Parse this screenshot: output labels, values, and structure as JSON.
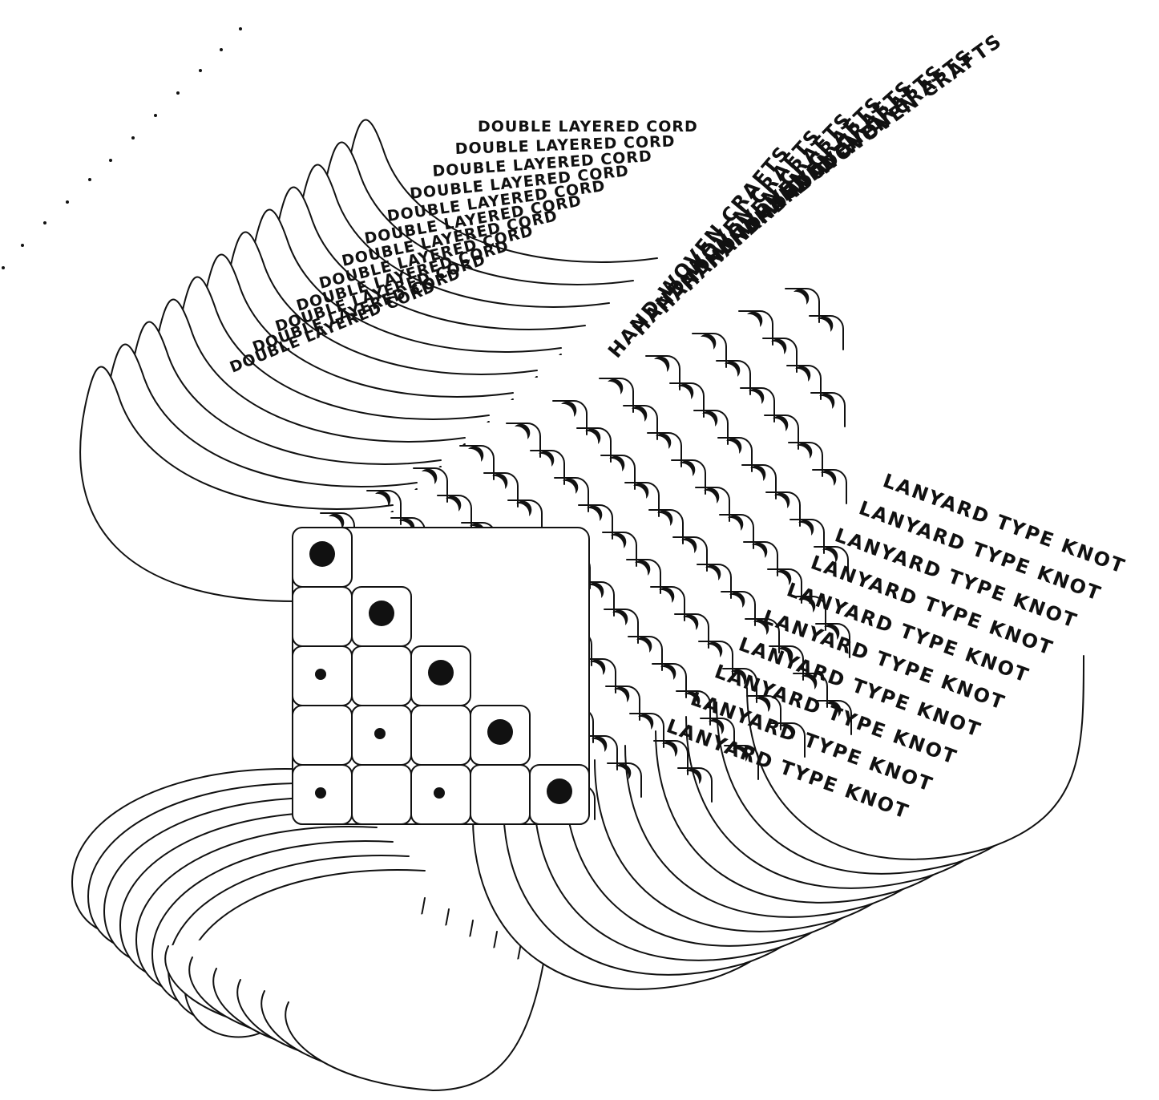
{
  "labels": {
    "double": "DOUBLE LAYERED CORD",
    "hand": "HAND-WOVEN CRAFTS",
    "lanyard": "LANYARD TYPE KNOT"
  },
  "colors": {
    "ink": "#111111",
    "paper": "#ffffff"
  },
  "grid": {
    "rows": 5,
    "cols": 5
  },
  "big_dots": [
    [
      0,
      0
    ],
    [
      1,
      1
    ],
    [
      2,
      2
    ],
    [
      3,
      3
    ],
    [
      4,
      4
    ]
  ],
  "small_dots": [
    [
      2,
      0
    ],
    [
      3,
      1
    ],
    [
      4,
      0
    ],
    [
      4,
      2
    ]
  ]
}
